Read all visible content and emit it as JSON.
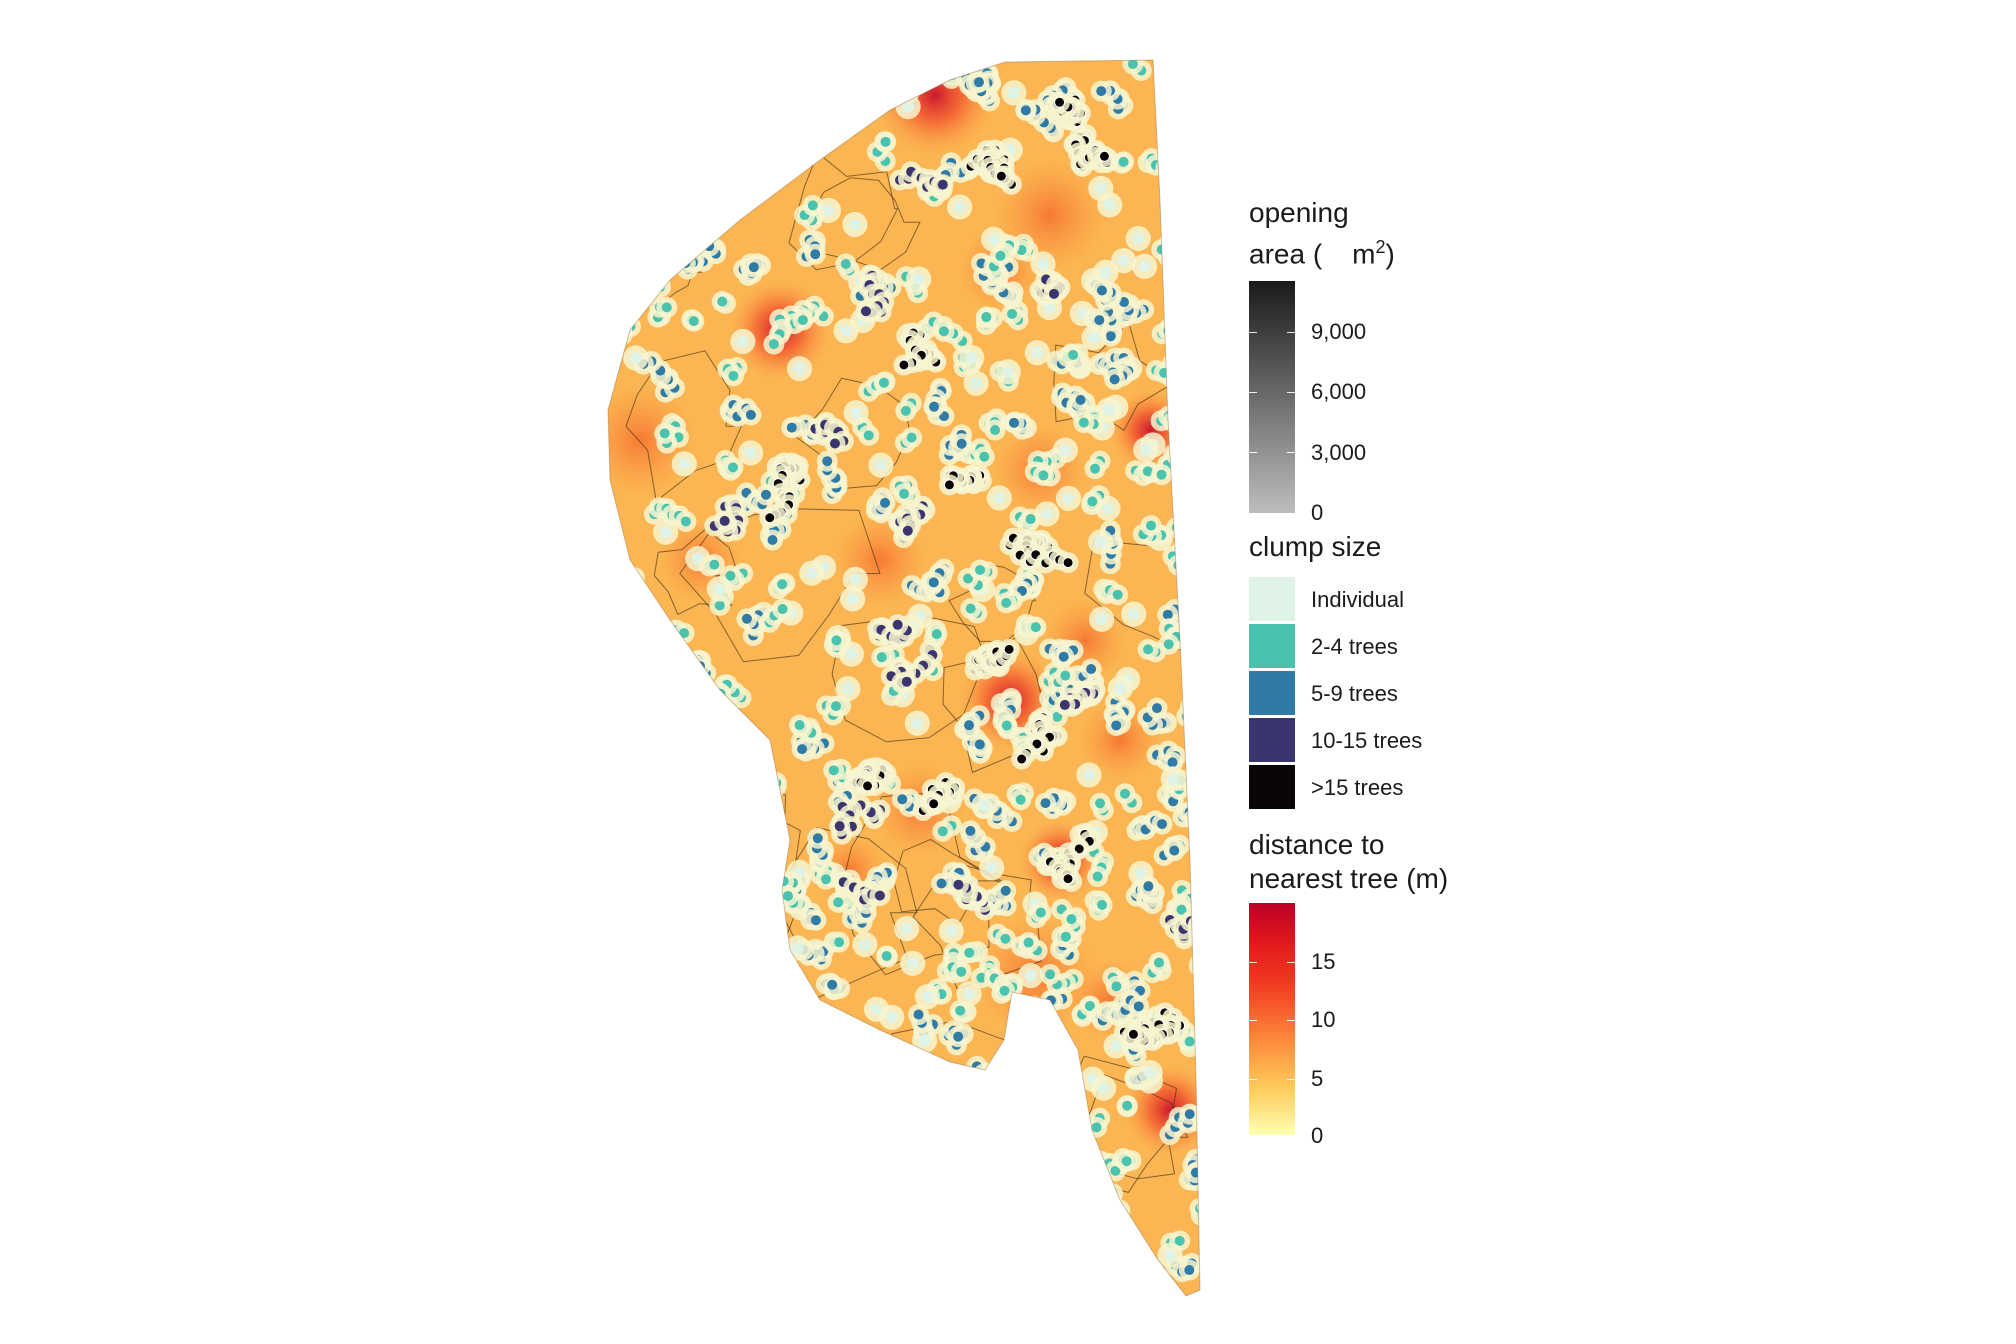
{
  "legend_opening": {
    "title_line1": "opening",
    "title_line2": "area (",
    "title_unit": "m",
    "title_sup": "2",
    "title_close": ")",
    "ticks": [
      "9,000",
      "6,000",
      "3,000",
      "0"
    ],
    "colors": [
      "#1a1a1a",
      "#bdbdbd"
    ]
  },
  "legend_clump": {
    "title": "clump size",
    "items": [
      {
        "label": "Individual",
        "color": "#dff3e6"
      },
      {
        "label": "2-4 trees",
        "color": "#4ac3ae"
      },
      {
        "label": "5-9 trees",
        "color": "#2f7ba6"
      },
      {
        "label": "10-15 trees",
        "color": "#3b356f"
      },
      {
        "label": ">15 trees",
        "color": "#0a0505"
      }
    ]
  },
  "legend_distance": {
    "title_line1": "distance to",
    "title_line2": "nearest tree (m)",
    "ticks": [
      "15",
      "10",
      "5",
      "0"
    ],
    "colors": [
      "#bd0026",
      "#f03b20",
      "#fd8d3c",
      "#fecc5c",
      "#ffffb2"
    ]
  }
}
